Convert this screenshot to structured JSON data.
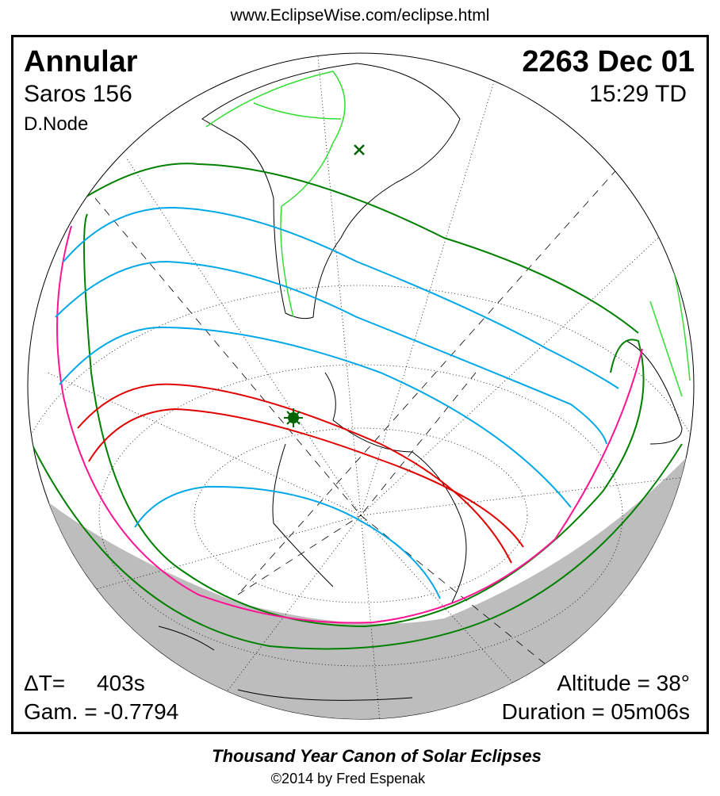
{
  "header": {
    "url": "www.EclipseWise.com/eclipse.html"
  },
  "eclipse": {
    "type": "Annular",
    "saros": "Saros 156",
    "node": "D.Node",
    "date": "2263 Dec 01",
    "time": "15:29 TD",
    "delta_t_label": "ΔT=",
    "delta_t_value": "403s",
    "gamma": "Gam. = -0.7794",
    "altitude": "Altitude = 38°",
    "duration": "Duration = 05m06s"
  },
  "footer": {
    "title": "Thousand Year Canon of Solar Eclipses",
    "copyright": "©2014 by Fred Espenak"
  },
  "colors": {
    "penumbral_limit": "#008000",
    "central_path": "#e00000",
    "magnitude_lines": "#00a8e8",
    "rise_set_curve": "#ff1493",
    "borders": "#33dd33",
    "night": "#bdbdbd"
  },
  "markers": {
    "greatest_eclipse": "star-icon",
    "subsolar_point": "cross-icon"
  }
}
